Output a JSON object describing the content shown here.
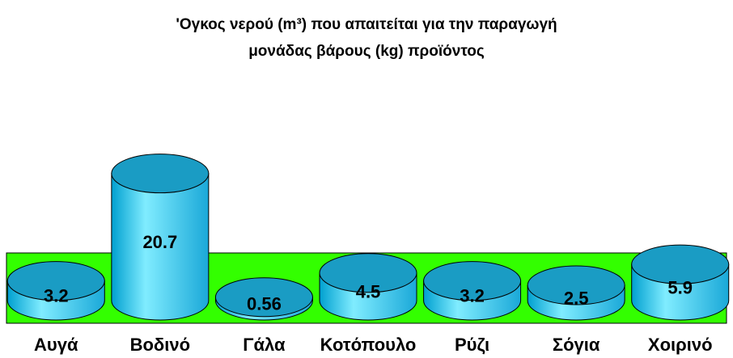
{
  "chart_data": {
    "type": "cylinder",
    "title": "'Ογκος νερού (m³) που απαιτείται για την παραγωγή μονάδας βάρους (kg) προϊόντος",
    "categories": [
      "Αυγά",
      "Βοδινό",
      "Γάλα",
      "Κοτόπουλο",
      "Ρύζι",
      "Σόγια",
      "Χοιρινό"
    ],
    "values": [
      3.2,
      20.7,
      0.56,
      4.5,
      3.2,
      2.5,
      5.9
    ],
    "color": "#33ccff",
    "floor_color": "#33ff00"
  }
}
